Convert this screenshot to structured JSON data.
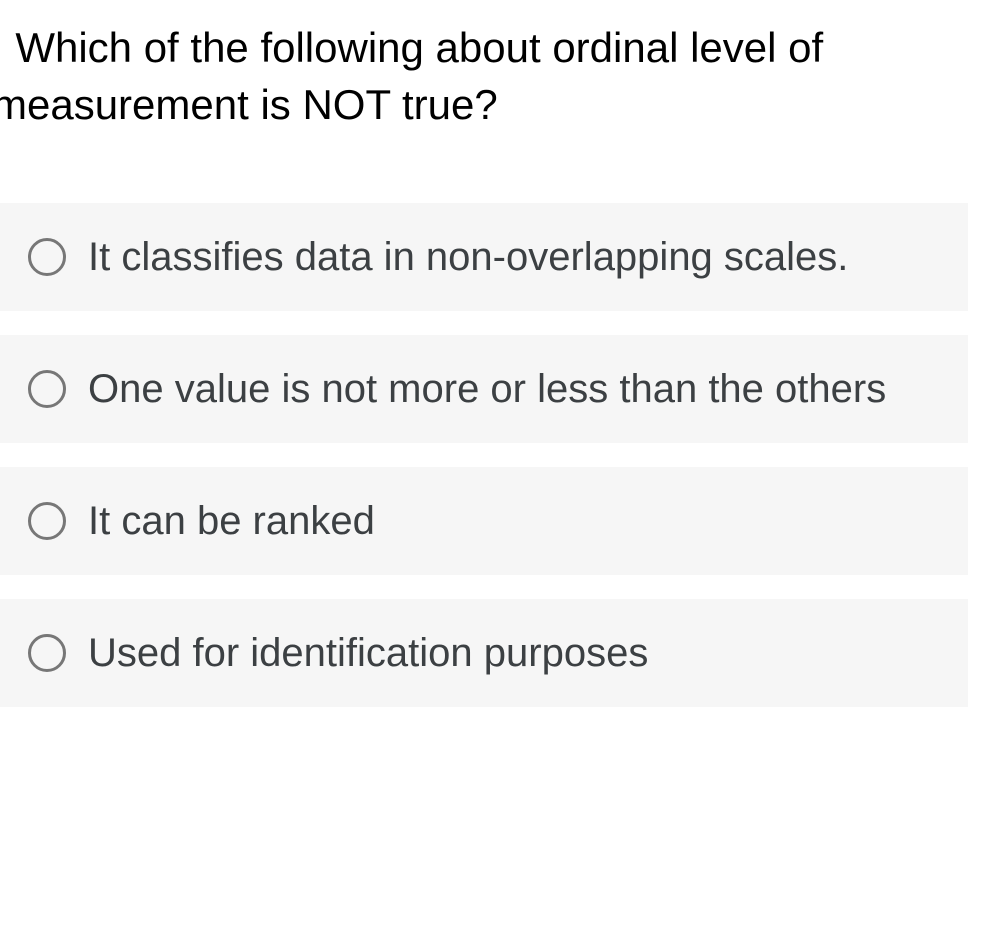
{
  "question": {
    "prefix": ".",
    "text": "Which of the following about ordinal level of measurement is NOT true?"
  },
  "options": [
    {
      "label": "It classifies data in non-overlapping scales."
    },
    {
      "label": "One value is not more or less than the others"
    },
    {
      "label": "It can be ranked"
    },
    {
      "label": "Used for identification purposes"
    }
  ],
  "colors": {
    "option_bg": "#f6f6f6",
    "radio_border": "#777777",
    "text": "#3c4043",
    "question_text": "#000000",
    "page_bg": "#ffffff"
  }
}
